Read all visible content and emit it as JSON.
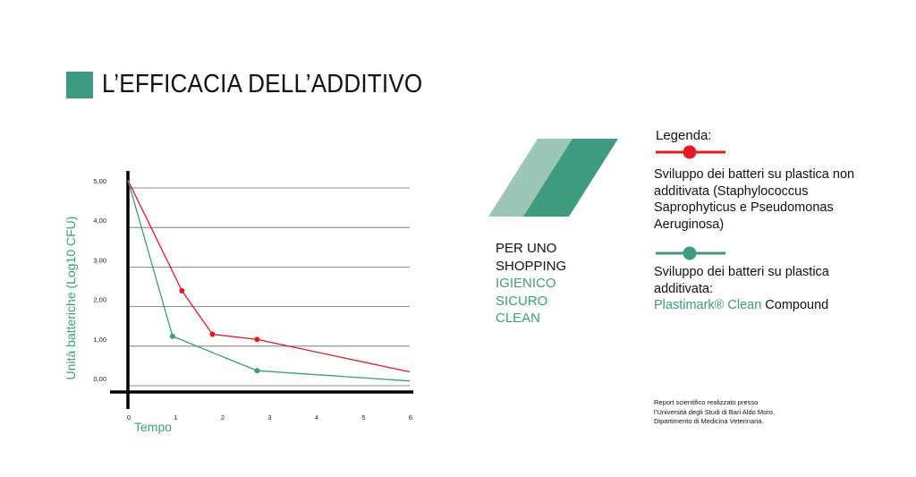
{
  "title": "L’EFFICACIA DELL’ADDITIVO",
  "colors": {
    "accent": "#3f9a82",
    "accent_light": "#9cc7b7",
    "red": "#e01b24"
  },
  "chart_data": {
    "type": "line",
    "ylabel": "Unità batteriche (Log10 CFU)",
    "xlabel": "Tempo",
    "x_ticks": [
      "0",
      "1",
      "2",
      "3",
      "4",
      "5",
      "6"
    ],
    "y_ticks": [
      "0,00",
      "1,00",
      "2,00",
      "3,00",
      "4,00",
      "5,00"
    ],
    "xlim": [
      0,
      6
    ],
    "ylim": [
      0,
      5
    ],
    "grid": true,
    "series": [
      {
        "name": "Sviluppo dei batteri su plastica non additivata (Staphylococcus Saprophyticus e Pseudomonas Aeruginosa)",
        "color": "#e01b24",
        "points": [
          [
            0,
            5.2
          ],
          [
            1.15,
            2.4
          ],
          [
            1.8,
            1.3
          ],
          [
            2.75,
            1.17
          ],
          [
            6,
            0.35
          ]
        ],
        "markers": [
          1,
          2,
          3
        ]
      },
      {
        "name": "Sviluppo dei batteri su plastica additivata: Plastimark® Clean Compound",
        "color": "#3f9a82",
        "points": [
          [
            0,
            5.2
          ],
          [
            0.95,
            1.25
          ],
          [
            2.75,
            0.38
          ],
          [
            6,
            0.12
          ]
        ],
        "markers": [
          1,
          2
        ]
      }
    ]
  },
  "slogan": {
    "line1": "PER UNO",
    "line2": "SHOPPING",
    "line3": "IGIENICO",
    "line4": "SICURO",
    "line5": "CLEAN"
  },
  "legend": {
    "title": "Legenda:",
    "red_text": "Sviluppo dei batteri su plastica non additivata (Staphylococcus Saprophyticus e Pseudomonas Aeruginosa)",
    "green_text_1": "Sviluppo dei batteri su plastica additivata:",
    "green_brand": "Plastimark® Clean",
    "green_text_2": " Compound"
  },
  "footnote": {
    "line1": "Report scientifico realizzato presso",
    "line2": "l’Università degli Studi di Bari Aldo Moro,",
    "line3": "Dipartimento di Medicina Veterinaria."
  }
}
